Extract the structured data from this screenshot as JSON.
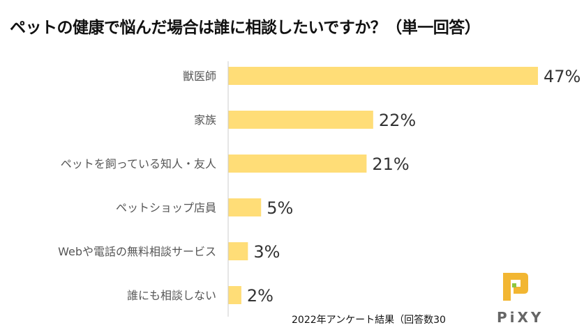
{
  "chart_data": {
    "type": "bar",
    "orientation": "horizontal",
    "title": "ペットの健康で悩んだ場合は誰に相談したいですか？（単一回答）",
    "categories": [
      "獣医師",
      "家族",
      "ペットを飼っている知人・友人",
      "ペットショップ店員",
      "Webや電話の無料相談サービス",
      "誰にも相談しない"
    ],
    "values": [
      47,
      22,
      21,
      5,
      3,
      2
    ],
    "labels": [
      "47%",
      "22%",
      "21%",
      "5%",
      "3%",
      "2%"
    ],
    "xlim": [
      0,
      50
    ],
    "grid": false,
    "bar_color": "#FFDD77"
  },
  "footnote": "2022年アンケート結果（回答数30",
  "logo": {
    "text": "PiXY",
    "colors": {
      "primary": "#F2B632",
      "accent": "#8DC63F"
    }
  }
}
